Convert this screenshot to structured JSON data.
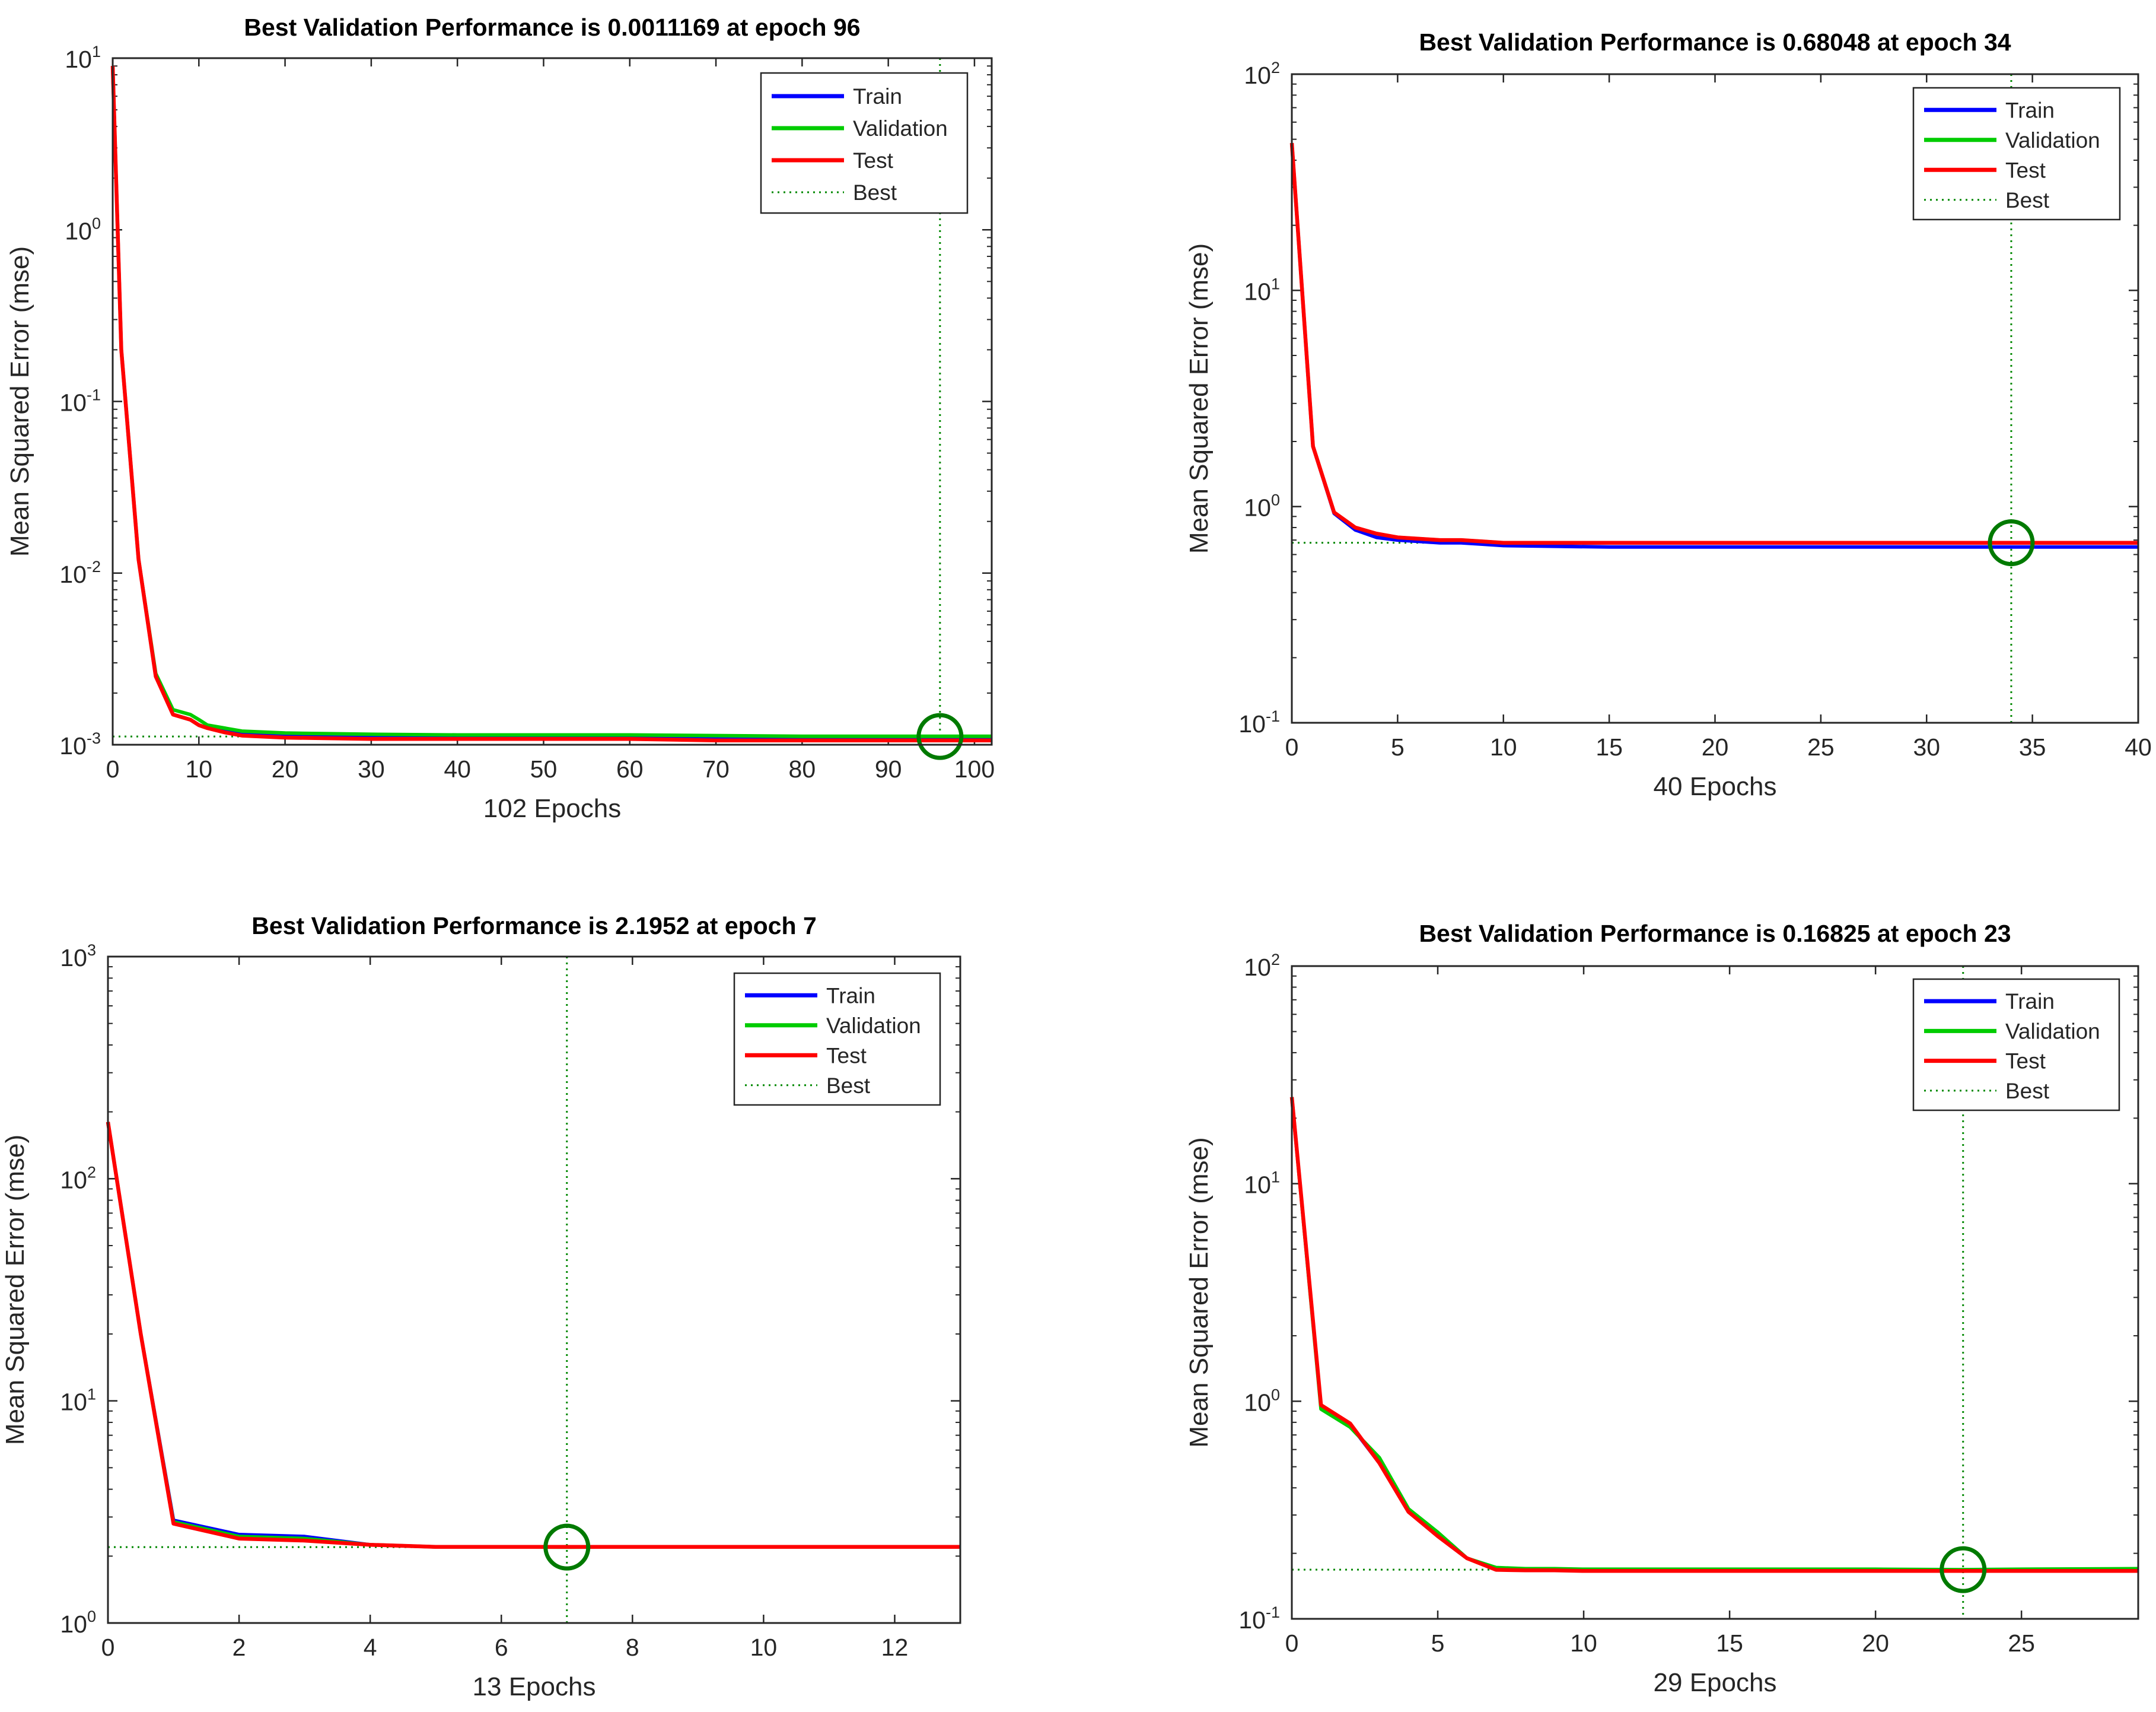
{
  "chart_data": [
    {
      "type": "line",
      "title": "Best Validation Performance is 0.0011169 at epoch 96",
      "xlabel": "102 Epochs",
      "ylabel": "Mean Squared Error  (mse)",
      "xlim": [
        0,
        102
      ],
      "ylim": [
        0.001,
        10
      ],
      "yscale": "log",
      "xticks": [
        0,
        10,
        20,
        30,
        40,
        50,
        60,
        70,
        80,
        90,
        100
      ],
      "yticks": [
        {
          "base": "10",
          "exp": "1",
          "value": 10
        },
        {
          "base": "10",
          "exp": "0",
          "value": 1
        },
        {
          "base": "10",
          "exp": "-1",
          "value": 0.1
        },
        {
          "base": "10",
          "exp": "-2",
          "value": 0.01
        },
        {
          "base": "10",
          "exp": "-3",
          "value": 0.001
        }
      ],
      "best": {
        "epoch": 96,
        "value": 0.0011169
      },
      "legend": [
        "Train",
        "Validation",
        "Test",
        "Best"
      ],
      "legend_position": "top-right",
      "series": [
        {
          "name": "Train",
          "color": "#0000ff",
          "x": [
            0,
            1,
            3,
            5,
            7,
            9,
            10,
            11,
            13,
            15,
            20,
            30,
            40,
            50,
            60,
            70,
            80,
            90,
            96,
            102
          ],
          "values": [
            9.0,
            0.2,
            0.012,
            0.0025,
            0.0015,
            0.0014,
            0.0013,
            0.00125,
            0.0012,
            0.00115,
            0.00113,
            0.00112,
            0.00112,
            0.00112,
            0.00112,
            0.00111,
            0.00111,
            0.00111,
            0.00111,
            0.00111
          ]
        },
        {
          "name": "Validation",
          "color": "#00cc00",
          "x": [
            0,
            1,
            3,
            5,
            7,
            9,
            10,
            11,
            13,
            15,
            20,
            30,
            40,
            50,
            60,
            70,
            80,
            90,
            96,
            102
          ],
          "values": [
            9.0,
            0.2,
            0.012,
            0.0026,
            0.0016,
            0.0015,
            0.0014,
            0.0013,
            0.00125,
            0.0012,
            0.00117,
            0.00115,
            0.00114,
            0.00114,
            0.00114,
            0.00113,
            0.00112,
            0.00112,
            0.00112,
            0.00112
          ]
        },
        {
          "name": "Test",
          "color": "#ff0000",
          "x": [
            0,
            1,
            3,
            5,
            7,
            9,
            10,
            11,
            13,
            15,
            20,
            30,
            40,
            50,
            60,
            70,
            80,
            90,
            96,
            102
          ],
          "values": [
            9.0,
            0.2,
            0.012,
            0.0025,
            0.0015,
            0.0014,
            0.0013,
            0.00125,
            0.00118,
            0.00113,
            0.0011,
            0.00108,
            0.00108,
            0.00108,
            0.00108,
            0.00106,
            0.00106,
            0.00106,
            0.00106,
            0.00106
          ]
        }
      ]
    },
    {
      "type": "line",
      "title": "Best Validation Performance is 0.68048 at epoch 34",
      "xlabel": "40 Epochs",
      "ylabel": "Mean Squared Error  (mse)",
      "xlim": [
        0,
        40
      ],
      "ylim": [
        0.1,
        100
      ],
      "yscale": "log",
      "xticks": [
        0,
        5,
        10,
        15,
        20,
        25,
        30,
        35,
        40
      ],
      "yticks": [
        {
          "base": "10",
          "exp": "2",
          "value": 100
        },
        {
          "base": "10",
          "exp": "1",
          "value": 10
        },
        {
          "base": "10",
          "exp": "0",
          "value": 1
        },
        {
          "base": "10",
          "exp": "-1",
          "value": 0.1
        }
      ],
      "best": {
        "epoch": 34,
        "value": 0.68048
      },
      "legend": [
        "Train",
        "Validation",
        "Test",
        "Best"
      ],
      "legend_position": "top-right",
      "series": [
        {
          "name": "Train",
          "color": "#0000ff",
          "x": [
            0,
            1,
            2,
            3,
            4,
            5,
            6,
            7,
            8,
            9,
            10,
            15,
            20,
            25,
            30,
            34,
            40
          ],
          "values": [
            48,
            1.9,
            0.93,
            0.78,
            0.72,
            0.7,
            0.69,
            0.68,
            0.68,
            0.67,
            0.66,
            0.65,
            0.65,
            0.65,
            0.65,
            0.65,
            0.65
          ]
        },
        {
          "name": "Validation",
          "color": "#00cc00",
          "x": [
            0,
            1,
            2,
            3,
            4,
            5,
            6,
            7,
            8,
            9,
            10,
            15,
            20,
            25,
            30,
            34,
            40
          ],
          "values": [
            48,
            1.9,
            0.94,
            0.8,
            0.75,
            0.72,
            0.71,
            0.7,
            0.7,
            0.69,
            0.68,
            0.68,
            0.68,
            0.68,
            0.68,
            0.68,
            0.68
          ]
        },
        {
          "name": "Test",
          "color": "#ff0000",
          "x": [
            0,
            1,
            2,
            3,
            4,
            5,
            6,
            7,
            8,
            9,
            10,
            15,
            20,
            25,
            30,
            34,
            40
          ],
          "values": [
            48,
            1.9,
            0.94,
            0.8,
            0.75,
            0.72,
            0.71,
            0.7,
            0.7,
            0.69,
            0.68,
            0.68,
            0.68,
            0.68,
            0.68,
            0.68,
            0.68
          ]
        }
      ]
    },
    {
      "type": "line",
      "title": "Best Validation Performance is 2.1952 at epoch 7",
      "xlabel": "13 Epochs",
      "ylabel": "Mean Squared Error  (mse)",
      "xlim": [
        0,
        13
      ],
      "ylim": [
        1,
        1000
      ],
      "yscale": "log",
      "xticks": [
        0,
        2,
        4,
        6,
        8,
        10,
        12
      ],
      "yticks": [
        {
          "base": "10",
          "exp": "3",
          "value": 1000
        },
        {
          "base": "10",
          "exp": "2",
          "value": 100
        },
        {
          "base": "10",
          "exp": "1",
          "value": 10
        },
        {
          "base": "10",
          "exp": "0",
          "value": 1
        }
      ],
      "best": {
        "epoch": 7,
        "value": 2.1952
      },
      "legend": [
        "Train",
        "Validation",
        "Test",
        "Best"
      ],
      "legend_position": "top-right",
      "series": [
        {
          "name": "Train",
          "color": "#0000ff",
          "x": [
            0,
            0.5,
            1,
            2,
            3,
            4,
            5,
            6,
            7,
            8,
            9,
            10,
            11,
            12,
            13
          ],
          "values": [
            180,
            20,
            2.9,
            2.5,
            2.45,
            2.25,
            2.2,
            2.2,
            2.2,
            2.2,
            2.2,
            2.2,
            2.2,
            2.2,
            2.2
          ]
        },
        {
          "name": "Validation",
          "color": "#00cc00",
          "x": [
            0,
            0.5,
            1,
            2,
            3,
            4,
            5,
            6,
            7,
            8,
            9,
            10,
            11,
            12,
            13
          ],
          "values": [
            180,
            20,
            2.85,
            2.45,
            2.4,
            2.25,
            2.2,
            2.2,
            2.195,
            2.2,
            2.2,
            2.2,
            2.2,
            2.2,
            2.2
          ]
        },
        {
          "name": "Test",
          "color": "#ff0000",
          "x": [
            0,
            0.5,
            1,
            2,
            3,
            4,
            5,
            6,
            7,
            8,
            9,
            10,
            11,
            12,
            13
          ],
          "values": [
            180,
            20,
            2.8,
            2.4,
            2.35,
            2.25,
            2.2,
            2.2,
            2.2,
            2.2,
            2.2,
            2.2,
            2.2,
            2.2,
            2.2
          ]
        }
      ]
    },
    {
      "type": "line",
      "title": "Best Validation Performance is 0.16825 at epoch 23",
      "xlabel": "29 Epochs",
      "ylabel": "Mean Squared Error  (mse)",
      "xlim": [
        0,
        29
      ],
      "ylim": [
        0.1,
        100
      ],
      "yscale": "log",
      "xticks": [
        0,
        5,
        10,
        15,
        20,
        25
      ],
      "yticks": [
        {
          "base": "10",
          "exp": "2",
          "value": 100
        },
        {
          "base": "10",
          "exp": "1",
          "value": 10
        },
        {
          "base": "10",
          "exp": "0",
          "value": 1
        },
        {
          "base": "10",
          "exp": "-1",
          "value": 0.1
        }
      ],
      "best": {
        "epoch": 23,
        "value": 0.16825
      },
      "legend": [
        "Train",
        "Validation",
        "Test",
        "Best"
      ],
      "legend_position": "top-right",
      "series": [
        {
          "name": "Train",
          "color": "#0000ff",
          "x": [
            0,
            1,
            2,
            3,
            4,
            5,
            6,
            7,
            8,
            9,
            10,
            15,
            20,
            23,
            25,
            29
          ],
          "values": [
            25,
            0.95,
            0.78,
            0.52,
            0.31,
            0.24,
            0.19,
            0.17,
            0.168,
            0.168,
            0.167,
            0.167,
            0.167,
            0.167,
            0.167,
            0.167
          ]
        },
        {
          "name": "Validation",
          "color": "#00cc00",
          "x": [
            0,
            1,
            2,
            3,
            4,
            5,
            6,
            7,
            8,
            9,
            10,
            15,
            20,
            23,
            25,
            29
          ],
          "values": [
            25,
            0.92,
            0.76,
            0.55,
            0.32,
            0.25,
            0.19,
            0.172,
            0.17,
            0.17,
            0.169,
            0.169,
            0.169,
            0.16825,
            0.169,
            0.17
          ]
        },
        {
          "name": "Test",
          "color": "#ff0000",
          "x": [
            0,
            1,
            2,
            3,
            4,
            5,
            6,
            7,
            8,
            9,
            10,
            15,
            20,
            23,
            25,
            29
          ],
          "values": [
            25,
            0.96,
            0.79,
            0.52,
            0.31,
            0.24,
            0.19,
            0.168,
            0.167,
            0.167,
            0.166,
            0.166,
            0.166,
            0.166,
            0.166,
            0.166
          ]
        }
      ]
    }
  ]
}
